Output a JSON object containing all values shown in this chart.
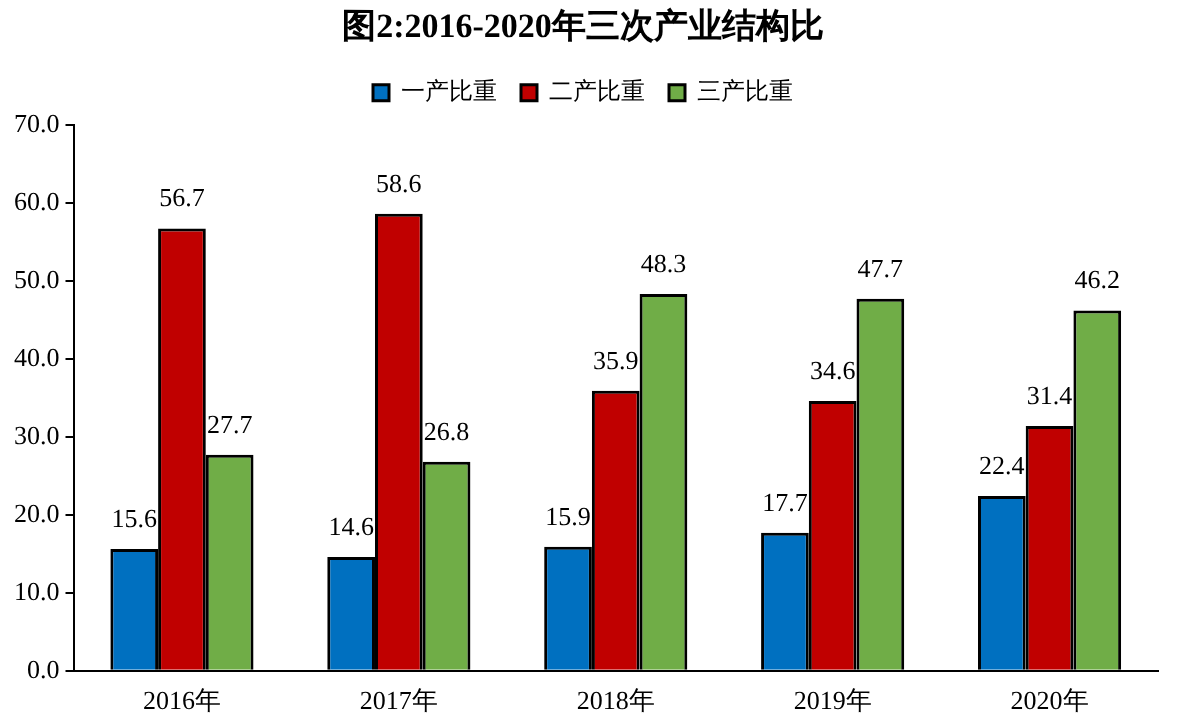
{
  "chart_data": {
    "type": "bar",
    "title": "图2:2016-2020年三次产业结构比",
    "categories": [
      "2016年",
      "2017年",
      "2018年",
      "2019年",
      "2020年"
    ],
    "series": [
      {
        "name": "一产比重",
        "color": "#0070c0",
        "values": [
          15.6,
          14.6,
          15.9,
          17.7,
          22.4
        ]
      },
      {
        "name": "二产比重",
        "color": "#c00000",
        "values": [
          56.7,
          58.6,
          35.9,
          34.6,
          31.4
        ]
      },
      {
        "name": "三产比重",
        "color": "#70ad47",
        "values": [
          27.7,
          26.8,
          48.3,
          47.7,
          46.2
        ]
      }
    ],
    "ylim": [
      0,
      70
    ],
    "yticks": [
      {
        "value": 0,
        "label": "0.0"
      },
      {
        "value": 10,
        "label": "10.0"
      },
      {
        "value": 20,
        "label": "20.0"
      },
      {
        "value": 30,
        "label": "30.0"
      },
      {
        "value": 40,
        "label": "40.0"
      },
      {
        "value": 50,
        "label": "50.0"
      },
      {
        "value": 60,
        "label": "60.0"
      },
      {
        "value": 70,
        "label": "70.0"
      }
    ],
    "grid": false,
    "legend": "top",
    "data_labels": true
  }
}
